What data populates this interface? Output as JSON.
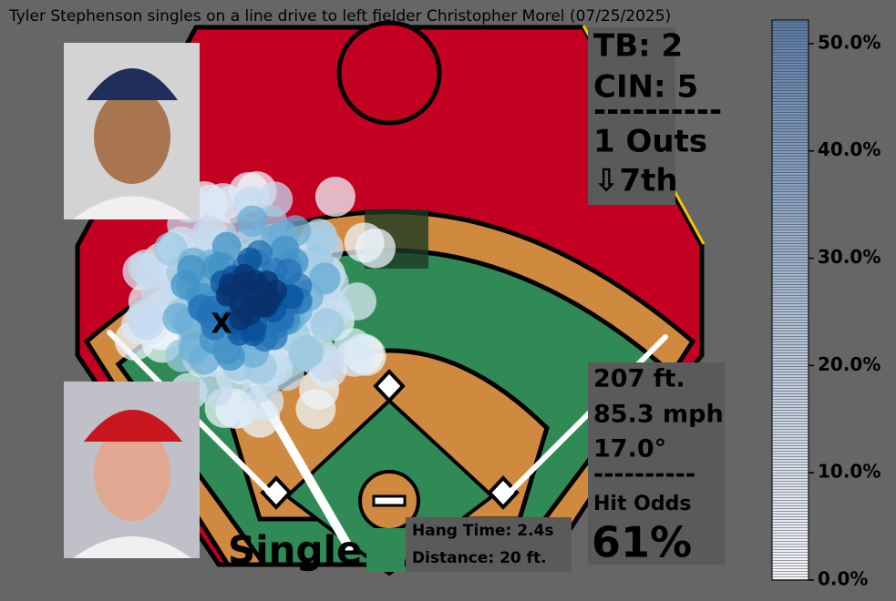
{
  "title": "Tyler Stephenson singles on a line drive to left fielder Christopher Morel (07/25/2025)",
  "scoreboard": {
    "away": "TB: 2",
    "home": "CIN: 5",
    "divider": "----------",
    "outs": "1 Outs",
    "inning": "⇩7th"
  },
  "hit": {
    "distance": "207 ft.",
    "exit_velocity": "85.3 mph",
    "launch_angle": "17.0°",
    "divider": "----------",
    "odds_label": "Hit Odds",
    "odds": "61%",
    "result": "Single",
    "hang_time": "Hang Time: 2.4s",
    "fielder_distance": "Distance: 20 ft.",
    "landing_marker": "X"
  },
  "colorbar": {
    "ylim": [
      0,
      52.2
    ],
    "yticks": [
      {
        "value": 0,
        "label": "0.0%"
      },
      {
        "value": 10,
        "label": "10.0%"
      },
      {
        "value": 20,
        "label": "20.0%"
      },
      {
        "value": 30,
        "label": "30.0%"
      },
      {
        "value": 40,
        "label": "40.0%"
      },
      {
        "value": 50,
        "label": "50.0%"
      }
    ]
  }
}
